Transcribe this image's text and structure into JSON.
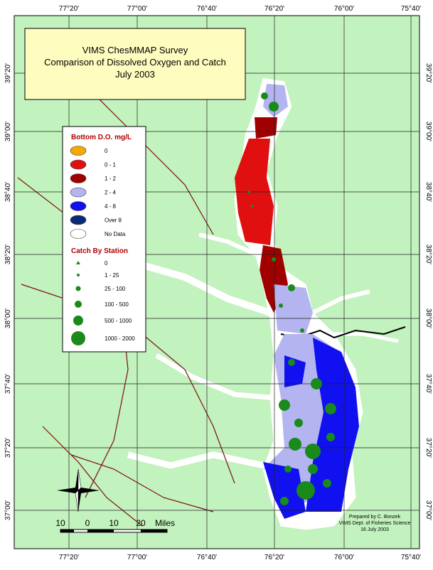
{
  "title": {
    "lines": [
      "VIMS ChesMMAP Survey",
      "Comparison of Dissolved Oxygen and Catch",
      "July 2003"
    ]
  },
  "legend": {
    "do_title": "Bottom D.O. mg/L",
    "do_items": [
      {
        "label": "0",
        "color": "#f5a800"
      },
      {
        "label": "0 - 1",
        "color": "#e01010"
      },
      {
        "label": "1 - 2",
        "color": "#a00000"
      },
      {
        "label": "2 - 4",
        "color": "#b4b4f0"
      },
      {
        "label": "4 - 8",
        "color": "#1010f0"
      },
      {
        "label": "Over 8",
        "color": "#0a2a78"
      },
      {
        "label": "No Data",
        "color": "#ffffff"
      }
    ],
    "catch_title": "Catch By Station",
    "catch_items": [
      "0",
      "1 - 25",
      "25 - 100",
      "100 - 500",
      "500 - 1000",
      "1000 - 2000"
    ],
    "catch_color": "#1a8a1a"
  },
  "graticule": {
    "longitudes": [
      "77°20'",
      "77°00'",
      "76°40'",
      "76°20'",
      "76°00'",
      "75°40'"
    ],
    "latitudes": [
      "39°20'",
      "39°00'",
      "38°40'",
      "38°20'",
      "38°00'",
      "37°40'",
      "37°20'",
      "37°00'"
    ]
  },
  "scale_bar": {
    "labels": [
      "10",
      "0",
      "10",
      "20"
    ],
    "unit": "Miles"
  },
  "credits": [
    "Prepared by C. Bonzek",
    "VIMS Dept. of Fisheries Science",
    "16 July 2003"
  ]
}
